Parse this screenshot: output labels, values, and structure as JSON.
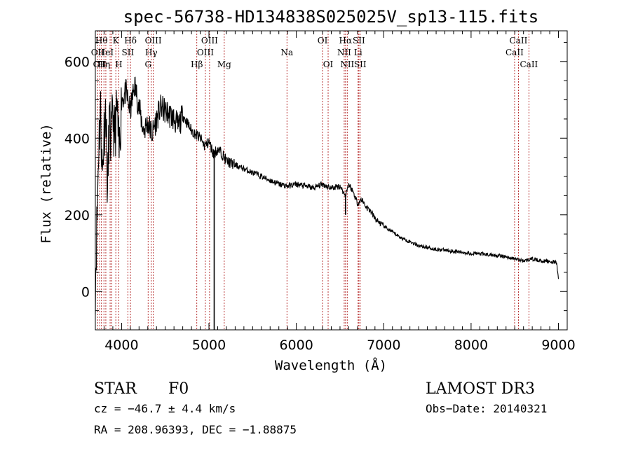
{
  "chart_data": {
    "type": "line",
    "title": "spec-56738-HD134838S025025V_sp13-115.fits",
    "xlabel": "Wavelength (Å)",
    "ylabel": "Flux (relative)",
    "xlim": [
      3700,
      9100
    ],
    "ylim": [
      -100,
      680
    ],
    "xticks": [
      4000,
      5000,
      6000,
      7000,
      8000,
      9000
    ],
    "yticks": [
      0,
      200,
      400,
      600
    ],
    "series": [
      {
        "name": "flux",
        "x": [
          3700,
          3720,
          3740,
          3760,
          3780,
          3800,
          3820,
          3840,
          3860,
          3880,
          3900,
          3920,
          3950,
          3970,
          4000,
          4050,
          4100,
          4150,
          4200,
          4250,
          4300,
          4350,
          4400,
          4450,
          4500,
          4550,
          4600,
          4650,
          4700,
          4750,
          4800,
          4850,
          4900,
          4950,
          5000,
          5050,
          5100,
          5150,
          5200,
          5300,
          5400,
          5500,
          5600,
          5700,
          5800,
          5900,
          6000,
          6100,
          6200,
          6300,
          6400,
          6500,
          6560,
          6600,
          6650,
          6700,
          6750,
          6800,
          6850,
          6900,
          7000,
          7100,
          7200,
          7300,
          7400,
          7500,
          7600,
          7700,
          7800,
          7900,
          8000,
          8100,
          8200,
          8300,
          8400,
          8500,
          8600,
          8700,
          8800,
          8900,
          8980,
          9000
        ],
        "y": [
          20,
          200,
          400,
          470,
          300,
          420,
          480,
          250,
          450,
          380,
          470,
          400,
          480,
          350,
          500,
          520,
          470,
          540,
          480,
          420,
          440,
          410,
          450,
          480,
          470,
          460,
          450,
          430,
          460,
          440,
          420,
          410,
          400,
          380,
          390,
          360,
          370,
          360,
          340,
          330,
          320,
          310,
          300,
          290,
          280,
          275,
          280,
          275,
          270,
          280,
          270,
          275,
          250,
          280,
          260,
          230,
          240,
          220,
          210,
          190,
          170,
          155,
          140,
          130,
          120,
          115,
          110,
          108,
          105,
          102,
          100,
          98,
          96,
          94,
          90,
          85,
          80,
          85,
          80,
          78,
          75,
          30
        ]
      }
    ],
    "dips": [
      {
        "x": 5060,
        "y": -100
      },
      {
        "x": 6563,
        "y": 200
      }
    ],
    "lines": [
      {
        "x": 3727,
        "label": "OII",
        "row": 2
      },
      {
        "x": 3750,
        "label": "OII",
        "row": 3
      },
      {
        "x": 3770,
        "label": "Hθ",
        "row": 1
      },
      {
        "x": 3798,
        "label": "Hη",
        "row": 3
      },
      {
        "x": 3820,
        "label": "HeI",
        "row": 2
      },
      {
        "x": 3869,
        "label": "",
        "row": 0
      },
      {
        "x": 3889,
        "label": "",
        "row": 0
      },
      {
        "x": 3934,
        "label": "K",
        "row": 1
      },
      {
        "x": 3969,
        "label": "H",
        "row": 3
      },
      {
        "x": 4072,
        "label": "SII",
        "row": 2
      },
      {
        "x": 4102,
        "label": "Hδ",
        "row": 1
      },
      {
        "x": 4304,
        "label": "G",
        "row": 3
      },
      {
        "x": 4340,
        "label": "Hγ",
        "row": 2
      },
      {
        "x": 4363,
        "label": "OIII",
        "row": 1
      },
      {
        "x": 4861,
        "label": "Hβ",
        "row": 3
      },
      {
        "x": 4959,
        "label": "OIII",
        "row": 2
      },
      {
        "x": 5007,
        "label": "OIII",
        "row": 1
      },
      {
        "x": 5175,
        "label": "Mg",
        "row": 3
      },
      {
        "x": 5893,
        "label": "Na",
        "row": 2
      },
      {
        "x": 6300,
        "label": "OI",
        "row": 1
      },
      {
        "x": 6364,
        "label": "OI",
        "row": 3
      },
      {
        "x": 6548,
        "label": "NII",
        "row": 2
      },
      {
        "x": 6563,
        "label": "Hα",
        "row": 1
      },
      {
        "x": 6583,
        "label": "NII",
        "row": 3
      },
      {
        "x": 6707,
        "label": "Li",
        "row": 2
      },
      {
        "x": 6716,
        "label": "SII",
        "row": 1
      },
      {
        "x": 6731,
        "label": "SII",
        "row": 3
      },
      {
        "x": 8498,
        "label": "CaII",
        "row": 2
      },
      {
        "x": 8542,
        "label": "CaII",
        "row": 1
      },
      {
        "x": 8662,
        "label": "CaII",
        "row": 3
      }
    ]
  },
  "info": {
    "object_class": "STAR",
    "subclass": "F0",
    "survey": "LAMOST DR3",
    "cz": "cz = −46.7 ± 4.4 km/s",
    "obs_date": "Obs−Date: 20140321",
    "coords": "RA = 208.96393, DEC =  −1.88875"
  }
}
